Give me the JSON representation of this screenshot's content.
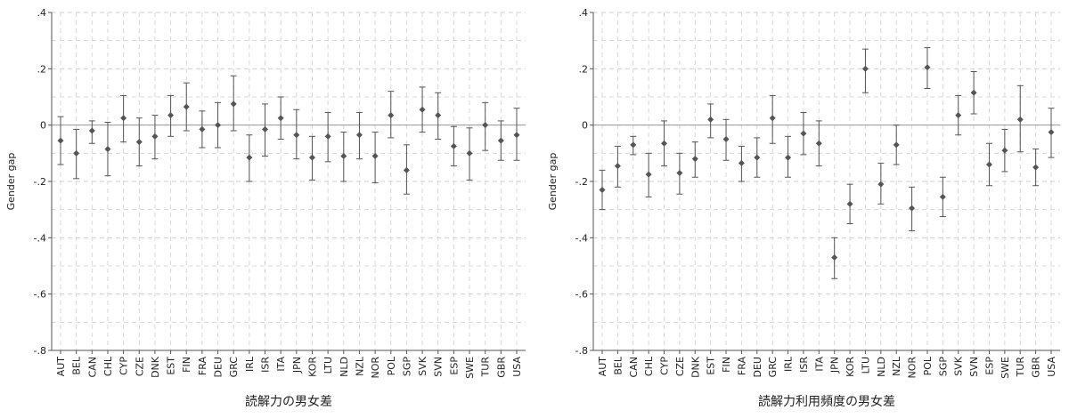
{
  "chart_data": [
    {
      "type": "scatter",
      "subtype": "point-with-confidence-interval",
      "title": "読解力の男女差",
      "ylabel": "Gender gap",
      "ylim": [
        -0.8,
        0.4
      ],
      "yticks": [
        0.4,
        0.2,
        0,
        -0.2,
        -0.4,
        -0.6,
        -0.8
      ],
      "ytick_labels": [
        ".4",
        ".2",
        "0",
        "-.2",
        "-.4",
        "-.6",
        "-.8"
      ],
      "reference_line": 0,
      "grid": true,
      "categories": [
        "AUT",
        "BEL",
        "CAN",
        "CHL",
        "CYP",
        "CZE",
        "DNK",
        "EST",
        "FIN",
        "FRA",
        "DEU",
        "GRC",
        "IRL",
        "ISR",
        "ITA",
        "JPN",
        "KOR",
        "LTU",
        "NLD",
        "NZL",
        "NOR",
        "POL",
        "SGP",
        "SVK",
        "SVN",
        "ESP",
        "SWE",
        "TUR",
        "GBR",
        "USA"
      ],
      "values": [
        -0.055,
        -0.1,
        -0.02,
        -0.085,
        0.025,
        -0.06,
        -0.04,
        0.035,
        0.065,
        -0.015,
        0.0,
        0.075,
        -0.115,
        -0.015,
        0.025,
        -0.035,
        -0.115,
        -0.04,
        -0.11,
        -0.035,
        -0.11,
        0.035,
        -0.16,
        0.055,
        0.035,
        -0.075,
        -0.1,
        0.0,
        -0.055,
        -0.035
      ],
      "lower": [
        -0.14,
        -0.19,
        -0.065,
        -0.18,
        -0.06,
        -0.145,
        -0.12,
        -0.04,
        -0.02,
        -0.08,
        -0.08,
        -0.02,
        -0.2,
        -0.11,
        -0.05,
        -0.12,
        -0.195,
        -0.13,
        -0.2,
        -0.12,
        -0.205,
        -0.045,
        -0.245,
        -0.025,
        -0.05,
        -0.145,
        -0.195,
        -0.09,
        -0.125,
        -0.125
      ],
      "upper": [
        0.03,
        -0.015,
        0.015,
        0.01,
        0.105,
        0.025,
        0.035,
        0.105,
        0.15,
        0.05,
        0.08,
        0.175,
        -0.035,
        0.075,
        0.1,
        0.055,
        -0.04,
        0.045,
        -0.025,
        0.045,
        -0.025,
        0.12,
        -0.07,
        0.135,
        0.115,
        -0.005,
        -0.01,
        0.08,
        0.015,
        0.06
      ]
    },
    {
      "type": "scatter",
      "subtype": "point-with-confidence-interval",
      "title": "読解力利用頻度の男女差",
      "ylabel": "Gender gap",
      "ylim": [
        -0.8,
        0.4
      ],
      "yticks": [
        0.4,
        0.2,
        0,
        -0.2,
        -0.4,
        -0.6,
        -0.8
      ],
      "ytick_labels": [
        ".4",
        ".2",
        "0",
        "-.2",
        "-.4",
        "-.6",
        "-.8"
      ],
      "reference_line": 0,
      "grid": true,
      "categories": [
        "AUT",
        "BEL",
        "CAN",
        "CHL",
        "CYP",
        "CZE",
        "DNK",
        "EST",
        "FIN",
        "FRA",
        "DEU",
        "GRC",
        "IRL",
        "ISR",
        "ITA",
        "JPN",
        "KOR",
        "LTU",
        "NLD",
        "NZL",
        "NOR",
        "POL",
        "SGP",
        "SVK",
        "SVN",
        "ESP",
        "SWE",
        "TUR",
        "GBR",
        "USA"
      ],
      "values": [
        -0.23,
        -0.145,
        -0.07,
        -0.175,
        -0.065,
        -0.17,
        -0.12,
        0.02,
        -0.05,
        -0.135,
        -0.115,
        0.025,
        -0.115,
        -0.03,
        -0.065,
        -0.47,
        -0.28,
        0.2,
        -0.21,
        -0.07,
        -0.295,
        0.205,
        -0.255,
        0.035,
        0.115,
        -0.14,
        -0.09,
        0.02,
        -0.15,
        -0.025
      ],
      "lower": [
        -0.3,
        -0.22,
        -0.105,
        -0.255,
        -0.145,
        -0.245,
        -0.185,
        -0.045,
        -0.125,
        -0.2,
        -0.185,
        -0.065,
        -0.185,
        -0.105,
        -0.145,
        -0.545,
        -0.35,
        0.115,
        -0.28,
        -0.14,
        -0.375,
        0.13,
        -0.325,
        -0.035,
        0.04,
        -0.215,
        -0.165,
        -0.095,
        -0.215,
        -0.115
      ],
      "upper": [
        -0.16,
        -0.075,
        -0.04,
        -0.1,
        0.015,
        -0.1,
        -0.06,
        0.075,
        0.02,
        -0.075,
        -0.045,
        0.105,
        -0.04,
        0.045,
        0.015,
        -0.4,
        -0.21,
        0.27,
        -0.135,
        0.0,
        -0.22,
        0.275,
        -0.185,
        0.105,
        0.19,
        -0.065,
        -0.015,
        0.14,
        -0.085,
        0.06
      ]
    }
  ]
}
